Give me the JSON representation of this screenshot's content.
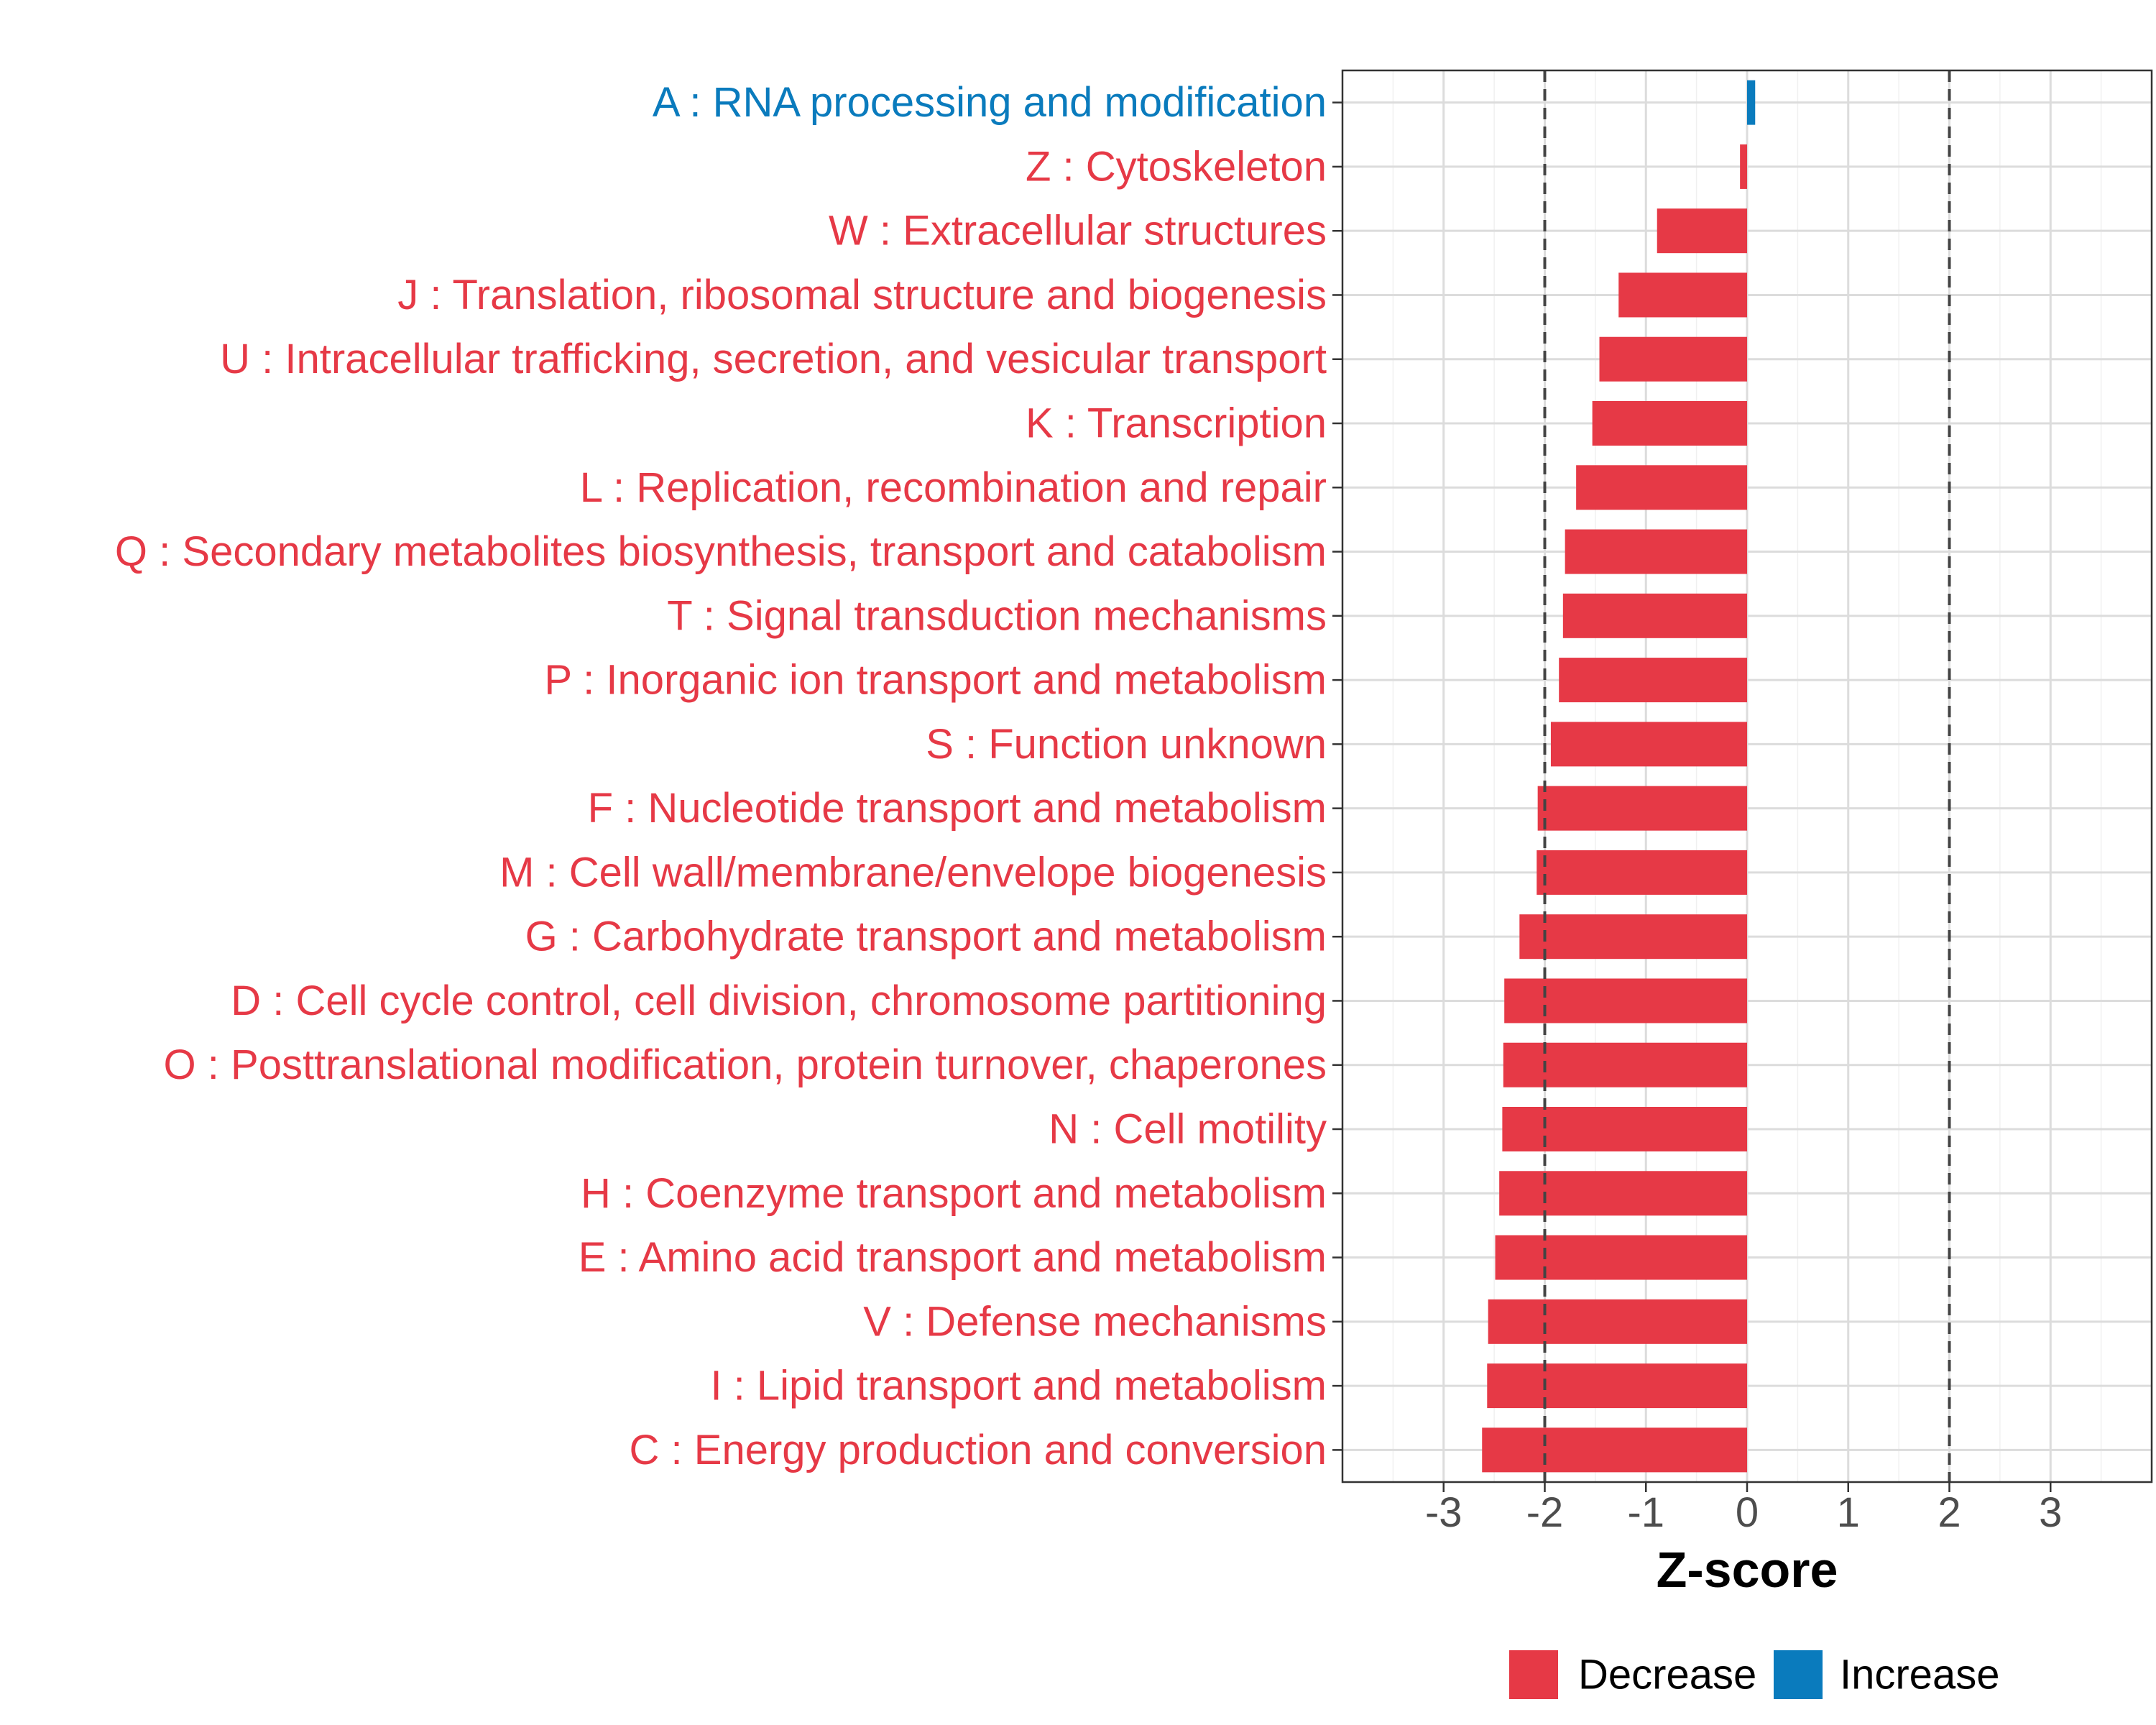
{
  "chart_data": {
    "type": "bar",
    "orientation": "horizontal",
    "title": "",
    "xlabel": "Z-score",
    "ylabel": "",
    "xlim": [
      -4,
      4
    ],
    "xticks": [
      -3,
      -2,
      -1,
      0,
      1,
      2,
      3
    ],
    "xtick_labels": [
      "-3",
      "-2",
      "-1",
      "0",
      "1",
      "2",
      "3"
    ],
    "threshold_lines": [
      -2,
      2
    ],
    "grid": true,
    "legend_position": "bottom",
    "colors": {
      "Decrease": "#E63946",
      "Increase": "#0A7BBD"
    },
    "legend": [
      {
        "label": "Decrease",
        "color": "#E63946"
      },
      {
        "label": "Increase",
        "color": "#0A7BBD"
      }
    ],
    "categories": [
      "A : RNA processing and modification",
      "Z : Cytoskeleton",
      "W : Extracellular structures",
      "J : Translation, ribosomal structure and biogenesis",
      "U : Intracellular trafficking, secretion, and vesicular transport",
      "K : Transcription",
      "L : Replication, recombination and repair",
      "Q : Secondary metabolites biosynthesis, transport and catabolism",
      "T : Signal transduction mechanisms",
      "P : Inorganic ion transport and metabolism",
      "S : Function unknown",
      "F : Nucleotide transport and metabolism",
      "M : Cell wall/membrane/envelope biogenesis",
      "G : Carbohydrate transport and metabolism",
      "D : Cell cycle control, cell division, chromosome partitioning",
      "O : Posttranslational modification, protein turnover, chaperones",
      "N : Cell motility",
      "H : Coenzyme transport and metabolism",
      "E : Amino acid transport and metabolism",
      "V : Defense mechanisms",
      "I : Lipid transport and metabolism",
      "C : Energy production and conversion"
    ],
    "values": [
      0.08,
      -0.07,
      -0.89,
      -1.27,
      -1.46,
      -1.53,
      -1.69,
      -1.8,
      -1.82,
      -1.86,
      -1.94,
      -2.07,
      -2.08,
      -2.25,
      -2.4,
      -2.41,
      -2.42,
      -2.45,
      -2.49,
      -2.56,
      -2.57,
      -2.62
    ],
    "groups": [
      "Increase",
      "Decrease",
      "Decrease",
      "Decrease",
      "Decrease",
      "Decrease",
      "Decrease",
      "Decrease",
      "Decrease",
      "Decrease",
      "Decrease",
      "Decrease",
      "Decrease",
      "Decrease",
      "Decrease",
      "Decrease",
      "Decrease",
      "Decrease",
      "Decrease",
      "Decrease",
      "Decrease",
      "Decrease"
    ]
  }
}
